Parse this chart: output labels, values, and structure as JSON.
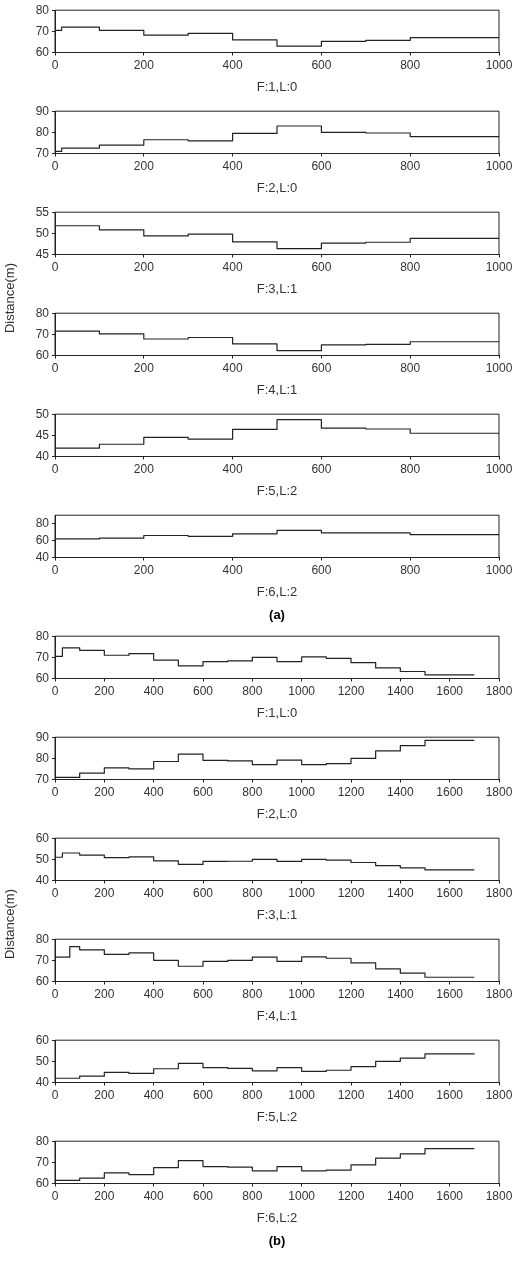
{
  "chart_data": [
    {
      "type": "step",
      "xlabel": "F:1,L:0",
      "xlim": [
        0,
        1000
      ],
      "xticks": [
        0,
        200,
        400,
        600,
        800,
        1000
      ],
      "ylim": [
        60,
        80
      ],
      "yticks": [
        60,
        70,
        80
      ],
      "series": [
        {
          "color": "#222222",
          "x": [
            0,
            15,
            100,
            200,
            300,
            400,
            500,
            600,
            700,
            800,
            1000
          ],
          "values": [
            70.5,
            72,
            70.5,
            68.2,
            69,
            66,
            63,
            65.3,
            65.7,
            67,
            67
          ]
        }
      ]
    },
    {
      "type": "step",
      "xlabel": "F:2,L:0",
      "xlim": [
        0,
        1000
      ],
      "xticks": [
        0,
        200,
        400,
        600,
        800,
        1000
      ],
      "ylim": [
        70,
        90
      ],
      "yticks": [
        70,
        80,
        90
      ],
      "series": [
        {
          "color": "#222222",
          "x": [
            0,
            15,
            100,
            200,
            300,
            400,
            500,
            600,
            700,
            800,
            1000
          ],
          "values": [
            71,
            72.5,
            74,
            76.5,
            76,
            79.5,
            83,
            80,
            79.7,
            78,
            78
          ]
        }
      ]
    },
    {
      "type": "step",
      "xlabel": "F:3,L:1",
      "ylabel": "Distance(m)",
      "xlim": [
        0,
        1000
      ],
      "xticks": [
        0,
        200,
        400,
        600,
        800,
        1000
      ],
      "ylim": [
        45,
        55
      ],
      "yticks": [
        45,
        50,
        55
      ],
      "series": [
        {
          "color": "#222222",
          "x": [
            0,
            100,
            200,
            300,
            400,
            500,
            600,
            700,
            800,
            1000
          ],
          "values": [
            51.8,
            50.8,
            49.4,
            49.8,
            48,
            46.4,
            47.7,
            47.9,
            48.8,
            48.8
          ]
        }
      ]
    },
    {
      "type": "step",
      "xlabel": "F:4,L:1",
      "xlim": [
        0,
        1000
      ],
      "xticks": [
        0,
        200,
        400,
        600,
        800,
        1000
      ],
      "ylim": [
        60,
        80
      ],
      "yticks": [
        60,
        70,
        80
      ],
      "series": [
        {
          "color": "#222222",
          "x": [
            0,
            100,
            200,
            300,
            400,
            500,
            600,
            700,
            800,
            1000
          ],
          "values": [
            71.5,
            70.2,
            67.8,
            68.5,
            65.5,
            62.3,
            65,
            65.3,
            66.5,
            66.5
          ]
        }
      ]
    },
    {
      "type": "step",
      "xlabel": "F:5,L:2",
      "xlim": [
        0,
        1000
      ],
      "xticks": [
        0,
        200,
        400,
        600,
        800,
        1000
      ],
      "ylim": [
        40,
        50
      ],
      "yticks": [
        40,
        45,
        50
      ],
      "series": [
        {
          "color": "#222222",
          "x": [
            0,
            100,
            200,
            300,
            400,
            500,
            600,
            700,
            800,
            1000
          ],
          "values": [
            42,
            42.9,
            44.5,
            44.1,
            46.4,
            48.7,
            46.7,
            46.5,
            45.5,
            45.3
          ]
        }
      ]
    },
    {
      "type": "step",
      "xlabel": "F:6,L:2",
      "annotations": [
        "(a)"
      ],
      "xlim": [
        0,
        1000
      ],
      "xticks": [
        0,
        200,
        400,
        600,
        800,
        1000
      ],
      "ylim": [
        40,
        90
      ],
      "yticks": [
        40,
        60,
        80
      ],
      "series": [
        {
          "color": "#222222",
          "x": [
            0,
            100,
            200,
            300,
            400,
            500,
            600,
            700,
            800,
            1000
          ],
          "values": [
            62,
            63,
            66,
            65,
            68,
            72,
            69,
            69,
            67,
            67
          ]
        }
      ]
    },
    {
      "type": "step",
      "xlabel": "F:1,L:0",
      "xlim": [
        0,
        1800
      ],
      "xticks": [
        0,
        200,
        400,
        600,
        800,
        1000,
        1200,
        1400,
        1600,
        1800
      ],
      "ylim": [
        60,
        80
      ],
      "yticks": [
        60,
        70,
        80
      ],
      "series": [
        {
          "color": "#222222",
          "x": [
            0,
            30,
            100,
            200,
            300,
            400,
            500,
            600,
            700,
            800,
            900,
            1000,
            1100,
            1200,
            1300,
            1400,
            1500,
            1700
          ],
          "values": [
            70.5,
            74.5,
            73.3,
            71,
            71.8,
            68.7,
            66,
            68,
            68.3,
            70,
            68,
            70.2,
            69.5,
            67.5,
            65,
            63.3,
            61.7,
            61.7
          ]
        }
      ]
    },
    {
      "type": "step",
      "xlabel": "F:2,L:0",
      "xlim": [
        0,
        1800
      ],
      "xticks": [
        0,
        200,
        400,
        600,
        800,
        1000,
        1200,
        1400,
        1600,
        1800
      ],
      "ylim": [
        70,
        90
      ],
      "yticks": [
        70,
        80,
        90
      ],
      "series": [
        {
          "color": "#222222",
          "x": [
            0,
            100,
            200,
            300,
            400,
            500,
            600,
            700,
            800,
            900,
            1000,
            1100,
            1200,
            1300,
            1400,
            1500,
            1700
          ],
          "values": [
            71,
            73,
            75.5,
            75,
            78.5,
            82,
            79,
            78.8,
            77,
            79.2,
            77,
            77.5,
            80,
            83.5,
            86,
            88.5,
            88.5
          ]
        }
      ]
    },
    {
      "type": "step",
      "xlabel": "F:3,L:1",
      "ylabel": "Distance(m)",
      "xlim": [
        0,
        1800
      ],
      "xticks": [
        0,
        200,
        400,
        600,
        800,
        1000,
        1200,
        1400,
        1600,
        1800
      ],
      "ylim": [
        40,
        60
      ],
      "yticks": [
        40,
        50,
        60
      ],
      "series": [
        {
          "color": "#222222",
          "x": [
            0,
            30,
            100,
            200,
            300,
            400,
            500,
            600,
            700,
            800,
            900,
            1000,
            1100,
            1200,
            1300,
            1400,
            1500,
            1700
          ],
          "values": [
            51,
            53,
            52,
            50.8,
            51.2,
            49.3,
            47.6,
            49,
            49.1,
            50,
            49,
            50,
            49.6,
            48.5,
            47,
            46,
            45,
            45
          ]
        }
      ]
    },
    {
      "type": "step",
      "xlabel": "F:4,L:1",
      "xlim": [
        0,
        1800
      ],
      "xticks": [
        0,
        200,
        400,
        600,
        800,
        1000,
        1200,
        1400,
        1600,
        1800
      ],
      "ylim": [
        60,
        80
      ],
      "yticks": [
        60,
        70,
        80
      ],
      "series": [
        {
          "color": "#222222",
          "x": [
            0,
            60,
            100,
            200,
            300,
            400,
            500,
            600,
            700,
            800,
            900,
            1000,
            1100,
            1200,
            1300,
            1400,
            1500,
            1700
          ],
          "values": [
            71.5,
            76.5,
            75,
            72.8,
            73.5,
            70,
            67.2,
            69.5,
            70,
            71.5,
            69.5,
            71.6,
            71,
            68.8,
            66,
            64,
            62,
            62
          ]
        }
      ]
    },
    {
      "type": "step",
      "xlabel": "F:5,L:2",
      "xlim": [
        0,
        1800
      ],
      "xticks": [
        0,
        200,
        400,
        600,
        800,
        1000,
        1200,
        1400,
        1600,
        1800
      ],
      "ylim": [
        40,
        60
      ],
      "yticks": [
        40,
        50,
        60
      ],
      "series": [
        {
          "color": "#222222",
          "x": [
            0,
            100,
            200,
            300,
            400,
            500,
            600,
            700,
            800,
            900,
            1000,
            1100,
            1200,
            1300,
            1400,
            1500,
            1700
          ],
          "values": [
            42,
            43,
            44.8,
            44.3,
            46.5,
            49,
            47,
            46.7,
            45.5,
            47,
            45.3,
            45.8,
            47.5,
            50,
            51.5,
            53.5,
            53.3
          ]
        }
      ]
    },
    {
      "type": "step",
      "xlabel": "F:6,L:2",
      "annotations": [
        "(b)"
      ],
      "xlim": [
        0,
        1800
      ],
      "xticks": [
        0,
        200,
        400,
        600,
        800,
        1000,
        1200,
        1400,
        1600,
        1800
      ],
      "ylim": [
        60,
        80
      ],
      "yticks": [
        60,
        70,
        80
      ],
      "series": [
        {
          "color": "#222222",
          "x": [
            0,
            100,
            200,
            300,
            400,
            500,
            600,
            700,
            800,
            900,
            1000,
            1100,
            1200,
            1300,
            1400,
            1500,
            1700
          ],
          "values": [
            61.5,
            62.5,
            65,
            64.2,
            67.5,
            70.8,
            68,
            67.7,
            66,
            68,
            66,
            66.3,
            68.8,
            72,
            74,
            76.5,
            76.5
          ]
        }
      ]
    }
  ]
}
